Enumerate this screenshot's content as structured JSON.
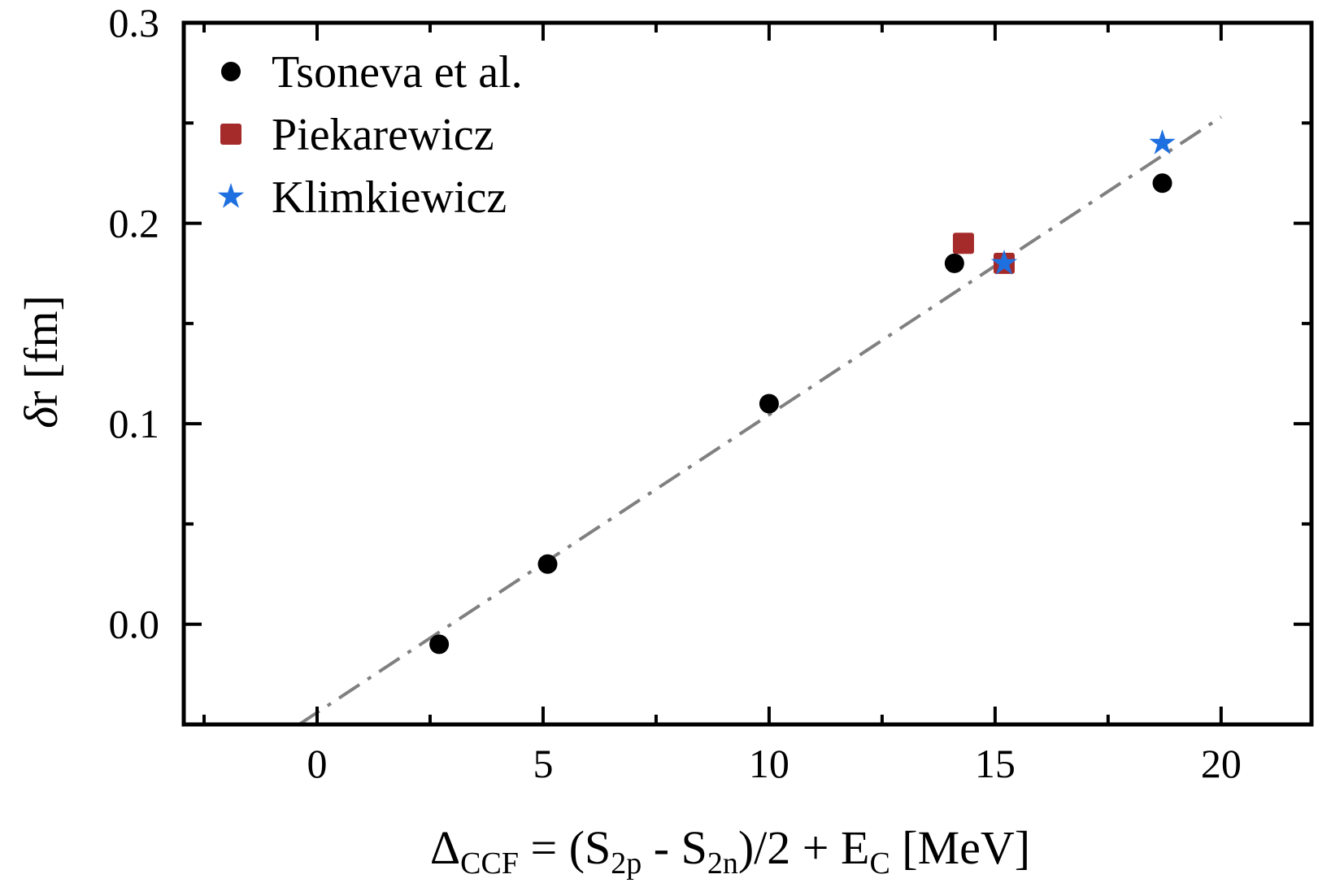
{
  "chart_data": {
    "type": "scatter",
    "xlim": [
      -2.95,
      22.0
    ],
    "ylim": [
      -0.05,
      0.3
    ],
    "x_ticks": [
      0,
      5,
      10,
      15,
      20
    ],
    "y_ticks": [
      0.0,
      0.1,
      0.2,
      0.3
    ],
    "x_minor_ticks": [
      -2.5,
      2.5,
      7.5,
      12.5,
      17.5
    ],
    "y_minor_ticks": [
      -0.05,
      0.05,
      0.15,
      0.25
    ],
    "x_tick_labels": [
      "0",
      "5",
      "10",
      "15",
      "20"
    ],
    "y_tick_labels": [
      "0.0",
      "0.1",
      "0.2",
      "0.3"
    ],
    "xlabel": {
      "base": "Δ",
      "sub1": "CCF",
      "mid1": " = (S",
      "sub2": "2p",
      "mid2": " - S",
      "sub3": "2n",
      "mid3": ")/2 + E",
      "sub4": "C",
      "tail": " [MeV]"
    },
    "ylabel": {
      "italic": "δ",
      "rest": "r [fm]"
    },
    "grid": false,
    "legend_position": "top-left",
    "series": [
      {
        "name": "Tsoneva et al.",
        "marker": "circle",
        "color": "#000000",
        "x": [
          2.7,
          5.1,
          10.0,
          14.1,
          18.7
        ],
        "y": [
          -0.01,
          0.03,
          0.11,
          0.18,
          0.22
        ]
      },
      {
        "name": "Piekarewicz",
        "marker": "square",
        "color": "#a52a2a",
        "x": [
          14.3,
          15.2
        ],
        "y": [
          0.19,
          0.18
        ]
      },
      {
        "name": "Klimkiewicz",
        "marker": "star",
        "color": "#1e6fe0",
        "x": [
          15.2,
          18.7
        ],
        "y": [
          0.18,
          0.24
        ]
      }
    ],
    "fit_line": {
      "style": "dash-dot",
      "color": "#808080",
      "x": [
        -0.4,
        20.0
      ],
      "y": [
        -0.05,
        0.253
      ]
    }
  }
}
